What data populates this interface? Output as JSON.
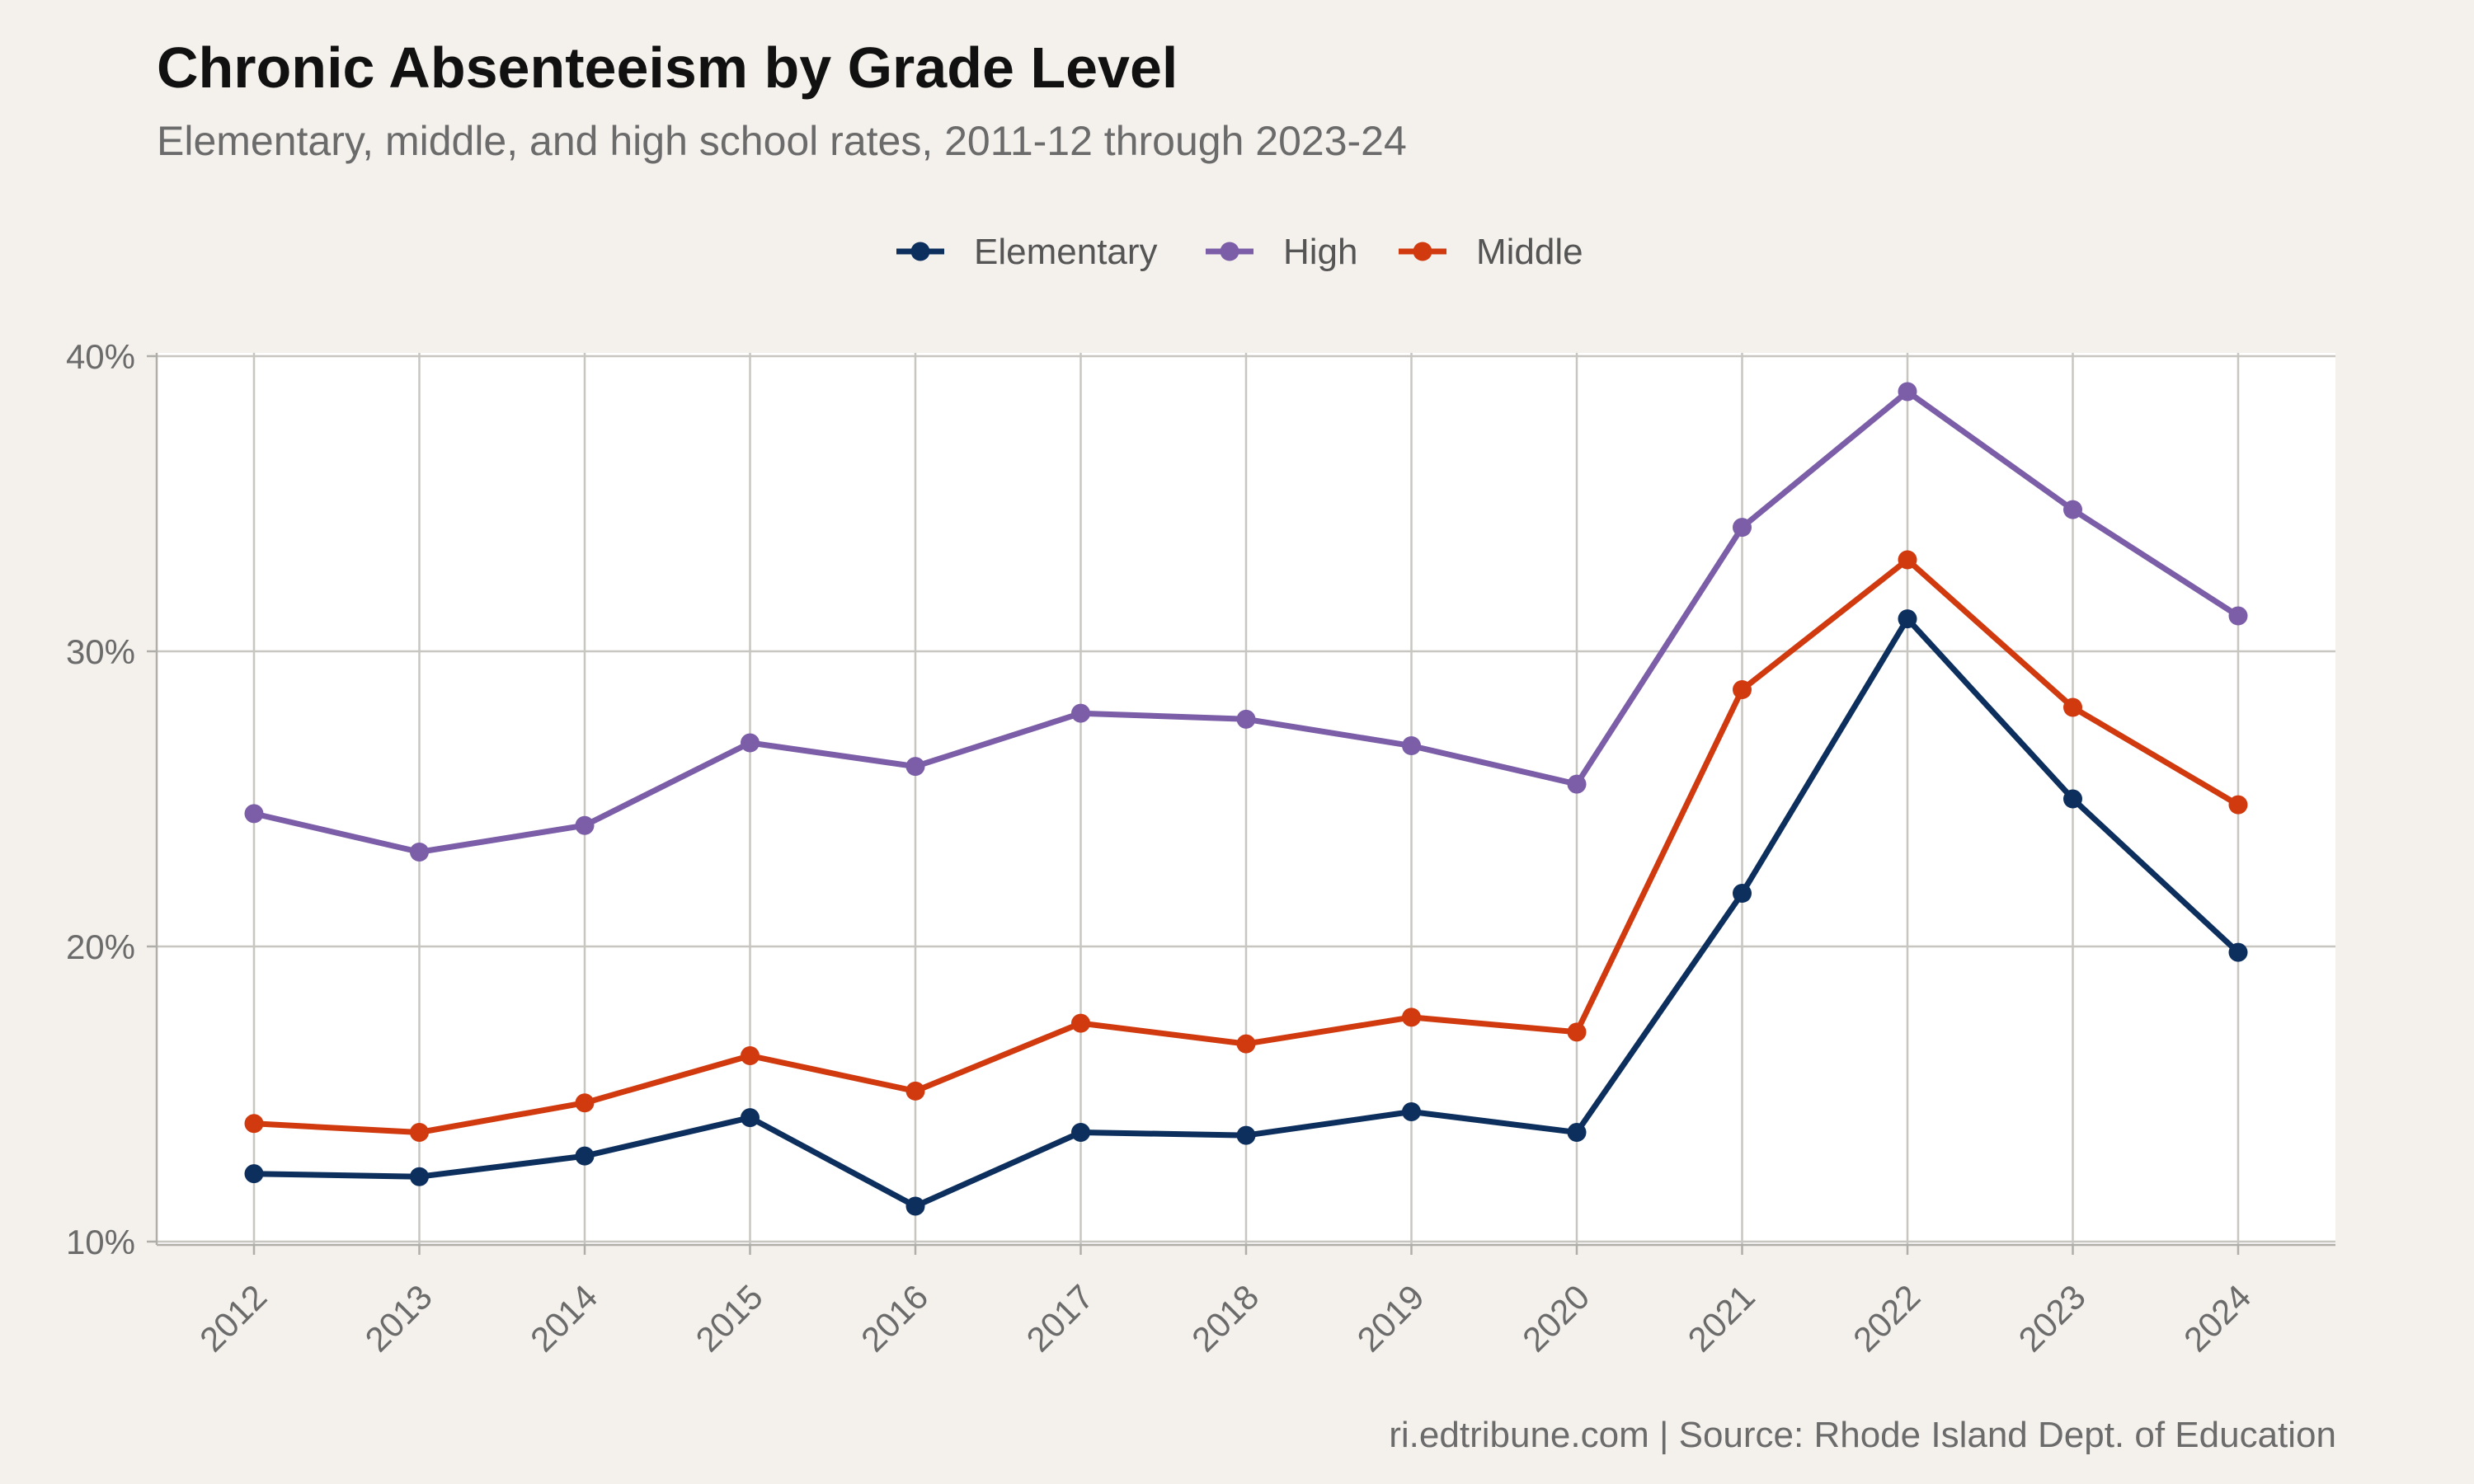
{
  "title": "Chronic Absenteeism by Grade Level",
  "subtitle": "Elementary, middle, and high school rates, 2011-12 through 2023-24",
  "caption": "ri.edtribune.com | Source: Rhode Island Dept. of Education",
  "chart_data": {
    "type": "line",
    "x": [
      2012,
      2013,
      2014,
      2015,
      2016,
      2017,
      2018,
      2019,
      2020,
      2021,
      2022,
      2023,
      2024
    ],
    "x_tick_labels": [
      "2012",
      "2013",
      "2014",
      "2015",
      "2016",
      "2017",
      "2018",
      "2019",
      "2020",
      "2021",
      "2022",
      "2023",
      "2024"
    ],
    "ylim": [
      10,
      40
    ],
    "y_ticks": [
      10,
      20,
      30,
      40
    ],
    "y_tick_labels": [
      "10%",
      "20%",
      "30%",
      "40%"
    ],
    "grid": true,
    "legend_position": "top",
    "xlabel": "",
    "ylabel": "",
    "series": [
      {
        "name": "Elementary",
        "color": "#0d2f5e",
        "values": [
          12.3,
          12.2,
          12.9,
          14.2,
          11.2,
          13.7,
          13.6,
          14.4,
          13.7,
          21.8,
          31.1,
          25.0,
          19.8
        ]
      },
      {
        "name": "High",
        "color": "#7b5ea7",
        "values": [
          24.5,
          23.2,
          24.1,
          26.9,
          26.1,
          27.9,
          27.7,
          26.8,
          25.5,
          34.2,
          38.8,
          34.8,
          31.2
        ]
      },
      {
        "name": "Middle",
        "color": "#d13a0f",
        "values": [
          14.0,
          13.7,
          14.7,
          16.3,
          15.1,
          17.4,
          16.7,
          17.6,
          17.1,
          28.7,
          33.1,
          28.1,
          24.8
        ]
      }
    ]
  }
}
